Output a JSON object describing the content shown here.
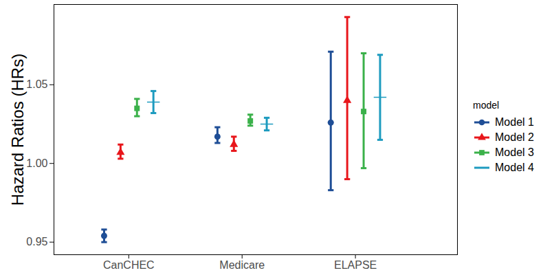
{
  "chart_data": {
    "type": "errorbar",
    "ylabel": "Hazard Ratios (HRs)",
    "categories": [
      "CanCHEC",
      "Medicare",
      "ELAPSE"
    ],
    "ylim": [
      0.942,
      1.101
    ],
    "yticks": [
      0.95,
      {
        "value": 1,
        "label": "1.00"
      },
      1.05
    ],
    "grid": false,
    "legend": "right",
    "legend_title": "model",
    "series": [
      {
        "name": "Model 1",
        "color": "#1f4e96",
        "marker": "circle",
        "values": [
          0.954,
          1.017,
          1.026
        ],
        "lower": [
          0.95,
          1.013,
          0.983
        ],
        "upper": [
          0.958,
          1.023,
          1.071
        ]
      },
      {
        "name": "Model 2",
        "color": "#e8161b",
        "marker": "triangle",
        "values": [
          1.007,
          1.012,
          1.04
        ],
        "lower": [
          1.003,
          1.008,
          0.99
        ],
        "upper": [
          1.012,
          1.017,
          1.093
        ]
      },
      {
        "name": "Model 3",
        "color": "#3bb14a",
        "marker": "square",
        "values": [
          1.035,
          1.027,
          1.033
        ],
        "lower": [
          1.03,
          1.024,
          0.997
        ],
        "upper": [
          1.041,
          1.031,
          1.07
        ]
      },
      {
        "name": "Model 4",
        "color": "#1d9bbf",
        "marker": "plus",
        "values": [
          1.039,
          1.025,
          1.042
        ],
        "lower": [
          1.032,
          1.021,
          1.015
        ],
        "upper": [
          1.046,
          1.029,
          1.069
        ]
      }
    ]
  }
}
